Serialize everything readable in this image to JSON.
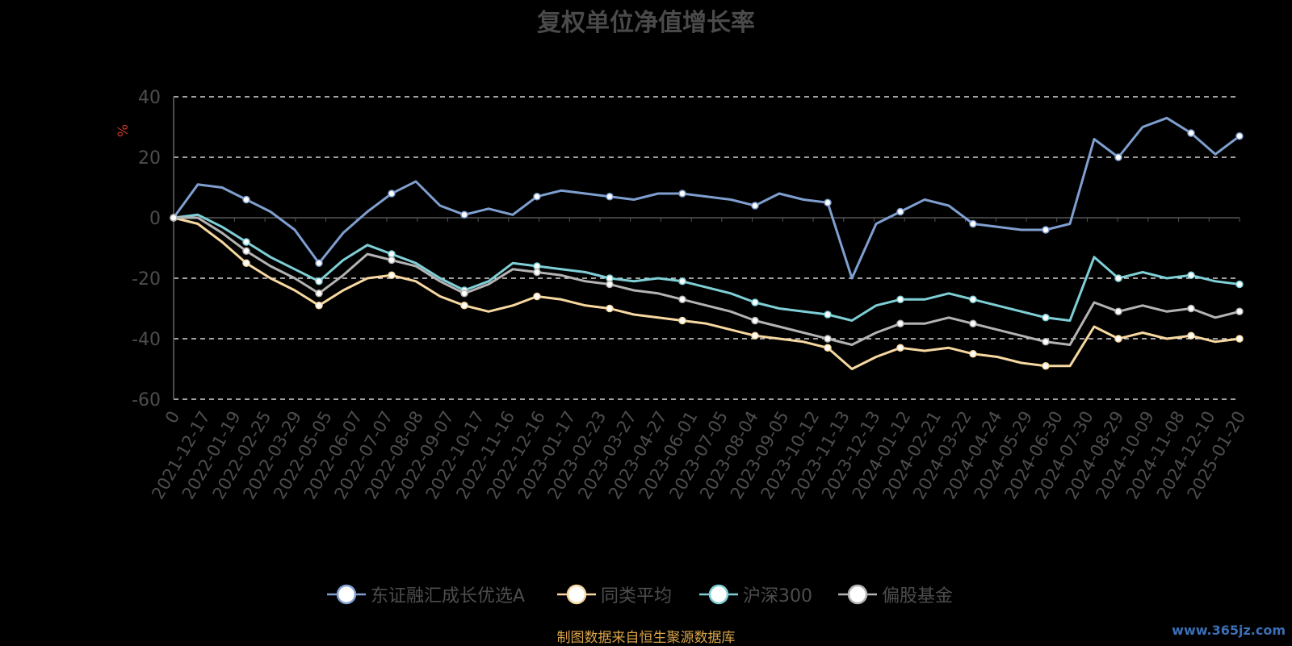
{
  "title": "复权单位净值增长率",
  "source_note": "制图数据来自恒生聚源数据库",
  "watermark": "www.365jz.com",
  "chart_data": {
    "type": "line",
    "ylabel": "%",
    "xlabel": "",
    "ylim": [
      -60,
      40
    ],
    "yticks": [
      -60,
      -40,
      -20,
      0,
      20,
      40
    ],
    "grid": true,
    "legend_position": "bottom",
    "x_ticks": [
      "0",
      "2021-12-17",
      "2022-01-19",
      "2022-02-25",
      "2022-03-29",
      "2022-05-05",
      "2022-06-07",
      "2022-07-07",
      "2022-08-08",
      "2022-09-07",
      "2022-10-17",
      "2022-11-16",
      "2022-12-16",
      "2023-01-17",
      "2023-02-23",
      "2023-03-27",
      "2023-04-27",
      "2023-06-01",
      "2023-07-05",
      "2023-08-04",
      "2023-09-05",
      "2023-10-12",
      "2023-11-13",
      "2023-12-13",
      "2024-01-12",
      "2024-02-21",
      "2024-03-22",
      "2024-04-24",
      "2024-05-29",
      "2024-06-30",
      "2024-07-30",
      "2024-08-29",
      "2024-10-09",
      "2024-11-08",
      "2024-12-10",
      "2025-01-20"
    ],
    "series": [
      {
        "name": "东证融汇成长优选A",
        "color": "#7f9fd0",
        "values": [
          0,
          11,
          10,
          6,
          2,
          -4,
          -15,
          -5,
          2,
          8,
          12,
          4,
          1,
          3,
          1,
          7,
          9,
          8,
          7,
          6,
          8,
          8,
          7,
          6,
          4,
          8,
          6,
          5,
          -20,
          -2,
          2,
          6,
          4,
          -2,
          -3,
          -4,
          -4,
          -2,
          26,
          20,
          30,
          33,
          28,
          21,
          27
        ]
      },
      {
        "name": "同类平均",
        "color": "#f6d8a0",
        "values": [
          0,
          -2,
          -8,
          -15,
          -20,
          -24,
          -29,
          -24,
          -20,
          -19,
          -21,
          -26,
          -29,
          -31,
          -29,
          -26,
          -27,
          -29,
          -30,
          -32,
          -33,
          -34,
          -35,
          -37,
          -39,
          -40,
          -41,
          -43,
          -50,
          -46,
          -43,
          -44,
          -43,
          -45,
          -46,
          -48,
          -49,
          -49,
          -36,
          -40,
          -38,
          -40,
          -39,
          -41,
          -40
        ]
      },
      {
        "name": "沪深300",
        "color": "#7ecfd6",
        "values": [
          0,
          1,
          -3,
          -8,
          -13,
          -17,
          -21,
          -14,
          -9,
          -12,
          -15,
          -20,
          -24,
          -21,
          -15,
          -16,
          -17,
          -18,
          -20,
          -21,
          -20,
          -21,
          -23,
          -25,
          -28,
          -30,
          -31,
          -32,
          -34,
          -29,
          -27,
          -27,
          -25,
          -27,
          -29,
          -31,
          -33,
          -34,
          -13,
          -20,
          -18,
          -20,
          -19,
          -21,
          -22
        ]
      },
      {
        "name": "偏股基金",
        "color": "#b3b3b3",
        "values": [
          0,
          0,
          -5,
          -11,
          -16,
          -20,
          -25,
          -19,
          -12,
          -14,
          -16,
          -21,
          -25,
          -22,
          -17,
          -18,
          -19,
          -21,
          -22,
          -24,
          -25,
          -27,
          -29,
          -31,
          -34,
          -36,
          -38,
          -40,
          -42,
          -38,
          -35,
          -35,
          -33,
          -35,
          -37,
          -39,
          -41,
          -42,
          -28,
          -31,
          -29,
          -31,
          -30,
          -33,
          -31
        ]
      }
    ]
  }
}
